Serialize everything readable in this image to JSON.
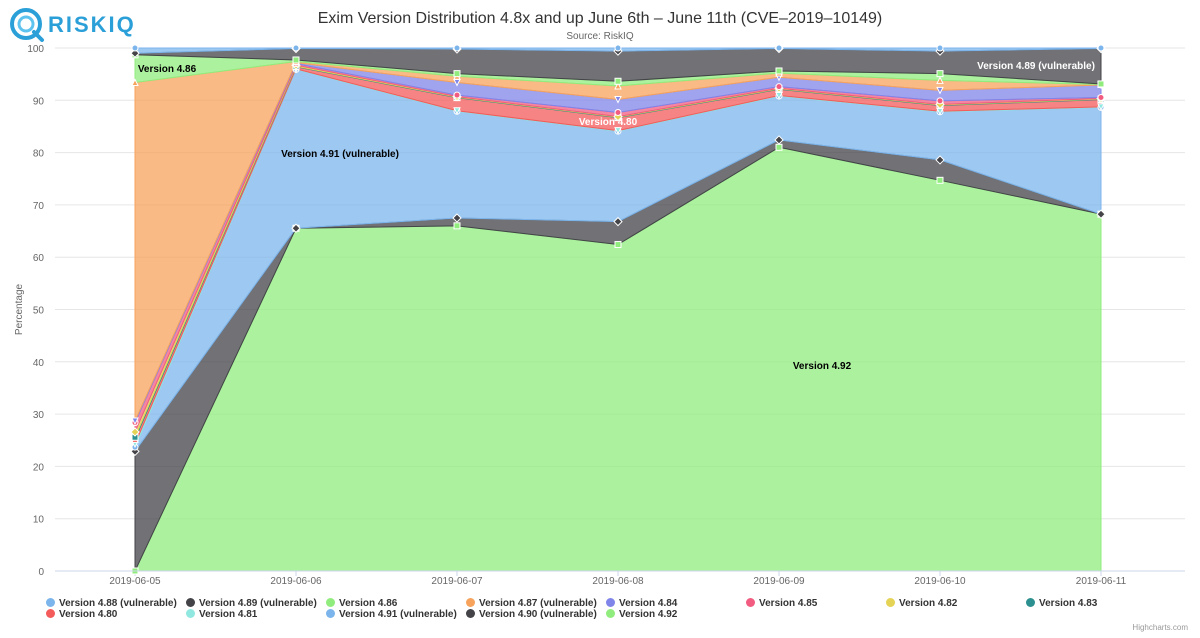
{
  "brand": {
    "name": "RISKIQ",
    "color": "#2b9fd8"
  },
  "credits": "Highcharts.com",
  "chart_data": {
    "type": "area",
    "stacking": "percent",
    "title": "Exim Version Distribution 4.8x and up June 6th – June 11th (CVE–2019–10149)",
    "subtitle": "Source: RiskIQ",
    "ylabel": "Percentage",
    "ylim": [
      0,
      100
    ],
    "yticks": [
      0,
      10,
      20,
      30,
      40,
      50,
      60,
      70,
      80,
      90,
      100
    ],
    "grid": true,
    "legend_position": "bottom",
    "x": [
      "2019-06-05",
      "2019-06-06",
      "2019-06-07",
      "2019-06-08",
      "2019-06-09",
      "2019-06-10",
      "2019-06-11"
    ],
    "stack_order_bottom_to_top": [
      "Version 4.92",
      "Version 4.90 (vulnerable)",
      "Version 4.91 (vulnerable)",
      "Version 4.81",
      "Version 4.80",
      "Version 4.83",
      "Version 4.82",
      "Version 4.85",
      "Version 4.84",
      "Version 4.87 (vulnerable)",
      "Version 4.86",
      "Version 4.89 (vulnerable)",
      "Version 4.88 (vulnerable)"
    ],
    "series": [
      {
        "name": "Version 4.88 (vulnerable)",
        "color": "#7cb5ec",
        "marker": "circle",
        "values": [
          1.0,
          0.1,
          0.2,
          0.6,
          0.1,
          0.6,
          0.1
        ]
      },
      {
        "name": "Version 4.89 (vulnerable)",
        "color": "#434348",
        "marker": "diamond",
        "values": [
          0.3,
          2.2,
          4.7,
          5.8,
          4.3,
          4.3,
          6.8
        ]
      },
      {
        "name": "Version 4.86",
        "color": "#90ed7d",
        "marker": "square",
        "values": [
          5.3,
          0.3,
          0.5,
          0.9,
          0.4,
          1.3,
          0.1
        ]
      },
      {
        "name": "Version 4.87 (vulnerable)",
        "color": "#f7a35c",
        "marker": "triangle",
        "values": [
          64.8,
          0.2,
          1.2,
          2.6,
          0.8,
          1.9,
          0.1
        ]
      },
      {
        "name": "Version 4.84",
        "color": "#8085e9",
        "marker": "triangle-down",
        "values": [
          0.3,
          0.2,
          2.4,
          2.5,
          1.8,
          2.0,
          2.4
        ]
      },
      {
        "name": "Version 4.85",
        "color": "#f15c80",
        "marker": "circle",
        "values": [
          1.8,
          0.3,
          0.3,
          0.8,
          0.3,
          0.7,
          0.2
        ]
      },
      {
        "name": "Version 4.82",
        "color": "#e4d354",
        "marker": "diamond",
        "values": [
          1.0,
          0.2,
          0.1,
          0.1,
          0.1,
          0.1,
          0.1
        ]
      },
      {
        "name": "Version 4.83",
        "color": "#2b908f",
        "marker": "square",
        "values": [
          0.4,
          0.1,
          0.1,
          0.1,
          0.1,
          0.1,
          0.1
        ]
      },
      {
        "name": "Version 4.80",
        "color": "#f45b5b",
        "marker": "triangle",
        "values": [
          0.9,
          0.4,
          2.5,
          2.5,
          1.2,
          1.1,
          1.4
        ]
      },
      {
        "name": "Version 4.81",
        "color": "#91e8e1",
        "marker": "triangle-down",
        "values": [
          0.6,
          0.1,
          0.1,
          0.1,
          0.1,
          0.1,
          0.1
        ]
      },
      {
        "name": "Version 4.91 (vulnerable)",
        "color": "#7cb5ec",
        "marker": "circle",
        "values": [
          0.8,
          30.5,
          20.4,
          17.4,
          8.4,
          9.2,
          20.5
        ]
      },
      {
        "name": "Version 4.90 (vulnerable)",
        "color": "#434348",
        "marker": "diamond",
        "values": [
          22.9,
          0.0,
          1.5,
          4.4,
          1.4,
          3.9,
          0.0
        ]
      },
      {
        "name": "Version 4.92",
        "color": "#90ed7d",
        "marker": "square",
        "values": [
          0.0,
          65.8,
          66.0,
          62.8,
          81.1,
          74.7,
          68.5
        ]
      }
    ],
    "annotations": [
      {
        "text": "Version 4.86",
        "color": "#000000"
      },
      {
        "text": "Version 4.91 (vulnerable)",
        "color": "#000000"
      },
      {
        "text": "Version 4.80",
        "color": "#ffffff"
      },
      {
        "text": "Version 4.89 (vulnerable)",
        "color": "#ffffff"
      },
      {
        "text": "Version 4.92",
        "color": "#000000"
      }
    ]
  }
}
